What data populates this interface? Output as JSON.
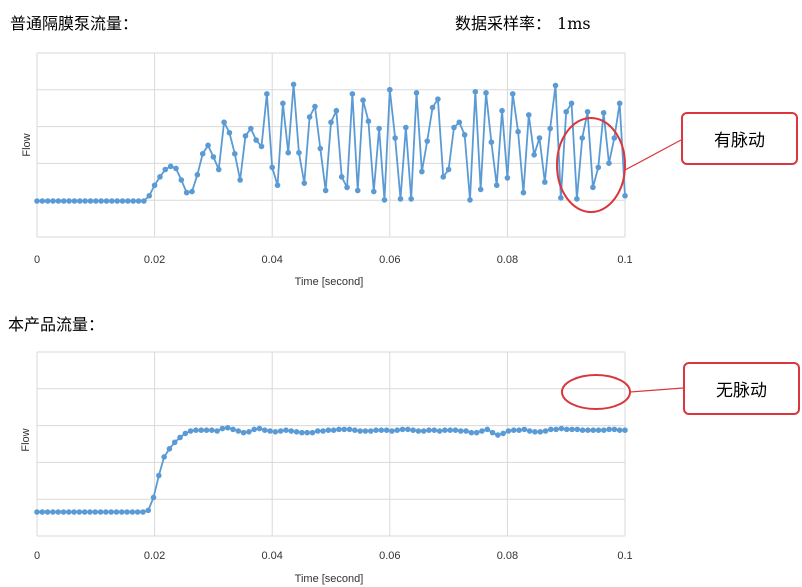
{
  "top_label": "普通隔膜泵流量：",
  "sample_rate_label": "数据采样率：",
  "sample_rate_value": "1ms",
  "bottom_label": "本产品流量：",
  "colors": {
    "series": "#5b9bd5",
    "grid": "#d9d9d9",
    "annotation": "#d9363e"
  },
  "chart_data": [
    {
      "type": "line",
      "xlabel": "Time [second]",
      "ylabel": "Flow",
      "xlim": [
        0,
        0.1
      ],
      "x_ticks": [
        "0",
        "0.02",
        "0.04",
        "0.06",
        "0.08",
        "0.1"
      ],
      "grid": true,
      "marker": "circle",
      "annotation": {
        "text": "有脉动",
        "x_range": [
          0.09,
          0.1
        ]
      },
      "series": [
        {
          "values": [
            0,
            0,
            0,
            0,
            0,
            0,
            0,
            0,
            0,
            0,
            0,
            0,
            0,
            0,
            0,
            0,
            0,
            0,
            0,
            0,
            0,
            0.5,
            1.5,
            2.3,
            3.0,
            3.3,
            3.1,
            2.0,
            0.8,
            0.9,
            2.5,
            4.5,
            5.3,
            4.2,
            3.0,
            7.5,
            6.5,
            4.5,
            2.0,
            6.2,
            6.9,
            5.8,
            5.2,
            10.2,
            3.2,
            1.5,
            9.3,
            4.6,
            11.1,
            4.6,
            1.7,
            8.0,
            9.0,
            5.0,
            1.0,
            7.5,
            8.6,
            2.3,
            1.3,
            10.2,
            1.0,
            9.6,
            7.6,
            0.9,
            6.9,
            0.1,
            10.6,
            6.0,
            0.2,
            7.0,
            0.2,
            10.3,
            2.8,
            5.7,
            8.9,
            9.7,
            2.3,
            3.0,
            7.0,
            7.5,
            6.3,
            0.1,
            10.4,
            1.1,
            10.3,
            5.6,
            1.5,
            8.6,
            2.2,
            10.2,
            6.6,
            0.8,
            8.2,
            4.4,
            6.0,
            1.8,
            6.9,
            11.0,
            0.3,
            8.5,
            9.3,
            0.2,
            6.0,
            8.5,
            1.3,
            3.2,
            8.4,
            3.6,
            6.0,
            9.3,
            0.5
          ]
        }
      ]
    },
    {
      "type": "line",
      "xlabel": "Time [second]",
      "ylabel": "Flow",
      "xlim": [
        0,
        0.1
      ],
      "x_ticks": [
        "0",
        "0.02",
        "0.04",
        "0.06",
        "0.08",
        "0.1"
      ],
      "grid": true,
      "marker": "circle",
      "annotation": {
        "text": "无脉动",
        "x_range": [
          0.09,
          0.1
        ]
      },
      "series": [
        {
          "values": [
            0,
            0,
            0,
            0,
            0,
            0,
            0,
            0,
            0,
            0,
            0,
            0,
            0,
            0,
            0,
            0,
            0,
            0,
            0,
            0,
            0,
            0.2,
            1.8,
            4.5,
            6.8,
            7.8,
            8.6,
            9.2,
            9.7,
            10.0,
            10.1,
            10.1,
            10.1,
            10.1,
            10.0,
            10.3,
            10.4,
            10.2,
            10.0,
            9.8,
            9.9,
            10.2,
            10.3,
            10.1,
            10.0,
            9.9,
            10.0,
            10.1,
            10.0,
            9.9,
            9.8,
            9.8,
            9.8,
            10.0,
            10.0,
            10.1,
            10.1,
            10.2,
            10.2,
            10.2,
            10.1,
            10.0,
            10.0,
            10.0,
            10.1,
            10.1,
            10.1,
            10.0,
            10.1,
            10.2,
            10.2,
            10.1,
            10.0,
            10.0,
            10.1,
            10.1,
            10.0,
            10.1,
            10.1,
            10.1,
            10.0,
            10.0,
            9.8,
            9.8,
            10.0,
            10.2,
            9.8,
            9.5,
            9.7,
            10.0,
            10.1,
            10.1,
            10.2,
            10.0,
            9.9,
            9.9,
            10.0,
            10.2,
            10.2,
            10.3,
            10.2,
            10.2,
            10.2,
            10.1,
            10.1,
            10.1,
            10.1,
            10.1,
            10.2,
            10.2,
            10.1,
            10.1
          ]
        }
      ]
    }
  ]
}
